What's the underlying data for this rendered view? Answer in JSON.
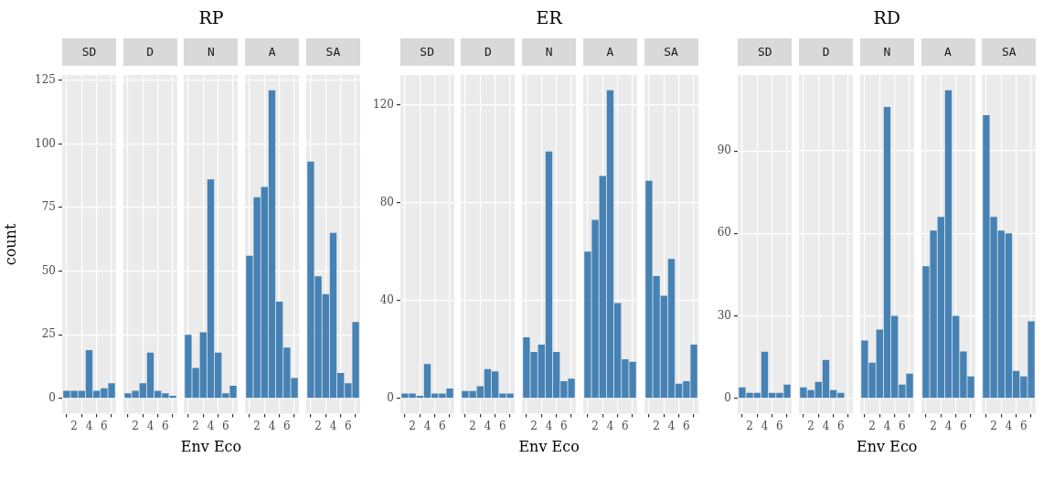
{
  "chart_data": [
    {
      "type": "bar",
      "subtitle": "SD",
      "ylabel": "count",
      "x": [
        1,
        2,
        3,
        4,
        5,
        6,
        7
      ],
      "values": [
        3,
        3,
        3,
        19,
        3,
        4,
        6
      ],
      "color": "#4682b4",
      "xlim": [
        0.4,
        7.6
      ],
      "xticks": [
        2,
        4,
        6
      ],
      "ylim": [
        -6,
        127
      ],
      "yticks": [
        0,
        25,
        50,
        75,
        100,
        125
      ],
      "grid": true
    },
    {
      "type": "bar",
      "subtitle": "D",
      "x": [
        1,
        2,
        3,
        4,
        5,
        6,
        7
      ],
      "values": [
        2,
        3,
        6,
        18,
        3,
        2,
        1
      ],
      "color": "#4682b4",
      "xlim": [
        0.4,
        7.6
      ],
      "xticks": [
        2,
        4,
        6
      ],
      "ylim": [
        -6,
        127
      ],
      "yticks": [
        0,
        25,
        50,
        75,
        100,
        125
      ],
      "grid": true,
      "tick_labels": "x"
    },
    {
      "type": "bar",
      "title": "RP",
      "subtitle": "N",
      "xlabel": "Env Eco",
      "x": [
        1,
        2,
        3,
        4,
        5,
        6,
        7
      ],
      "values": [
        25,
        12,
        26,
        86,
        18,
        2,
        5
      ],
      "color": "#4682b4",
      "xlim": [
        0.4,
        7.6
      ],
      "xticks": [
        2,
        4,
        6
      ],
      "ylim": [
        -6,
        127
      ],
      "yticks": [
        0,
        25,
        50,
        75,
        100,
        125
      ],
      "grid": true,
      "tick_labels": "x"
    },
    {
      "type": "bar",
      "subtitle": "A",
      "x": [
        1,
        2,
        3,
        4,
        5,
        6,
        7
      ],
      "values": [
        56,
        79,
        83,
        121,
        38,
        20,
        8
      ],
      "color": "#4682b4",
      "xlim": [
        0.4,
        7.6
      ],
      "xticks": [
        2,
        4,
        6
      ],
      "ylim": [
        -6,
        127
      ],
      "yticks": [
        0,
        25,
        50,
        75,
        100,
        125
      ],
      "grid": true,
      "tick_labels": "x"
    },
    {
      "type": "bar",
      "subtitle": "SA",
      "x": [
        1,
        2,
        3,
        4,
        5,
        6,
        7
      ],
      "values": [
        93,
        48,
        41,
        65,
        10,
        6,
        30
      ],
      "color": "#4682b4",
      "xlim": [
        0.4,
        7.6
      ],
      "xticks": [
        2,
        4,
        6
      ],
      "ylim": [
        -6,
        127
      ],
      "yticks": [
        0,
        25,
        50,
        75,
        100,
        125
      ],
      "grid": true,
      "tick_labels": "x"
    },
    {
      "type": "bar",
      "subtitle": "SD",
      "x": [
        1,
        2,
        3,
        4,
        5,
        6,
        7
      ],
      "values": [
        2,
        2,
        1,
        14,
        2,
        2,
        4
      ],
      "color": "#4682b4",
      "xlim": [
        0.4,
        7.6
      ],
      "xticks": [
        2,
        4,
        6
      ],
      "ylim": [
        -6.3,
        132.3
      ],
      "yticks": [
        0,
        40,
        80,
        120
      ],
      "grid": true
    },
    {
      "type": "bar",
      "subtitle": "D",
      "x": [
        1,
        2,
        3,
        4,
        5,
        6,
        7
      ],
      "values": [
        3,
        3,
        5,
        12,
        11,
        2,
        2
      ],
      "color": "#4682b4",
      "xlim": [
        0.4,
        7.6
      ],
      "xticks": [
        2,
        4,
        6
      ],
      "ylim": [
        -6.3,
        132.3
      ],
      "yticks": [
        0,
        40,
        80,
        120
      ],
      "grid": true,
      "tick_labels": "x"
    },
    {
      "type": "bar",
      "title": "ER",
      "subtitle": "N",
      "xlabel": "Env Eco",
      "x": [
        1,
        2,
        3,
        4,
        5,
        6,
        7
      ],
      "values": [
        25,
        19,
        22,
        101,
        19,
        7,
        8
      ],
      "color": "#4682b4",
      "xlim": [
        0.4,
        7.6
      ],
      "xticks": [
        2,
        4,
        6
      ],
      "ylim": [
        -6.3,
        132.3
      ],
      "yticks": [
        0,
        40,
        80,
        120
      ],
      "grid": true,
      "tick_labels": "x"
    },
    {
      "type": "bar",
      "subtitle": "A",
      "x": [
        1,
        2,
        3,
        4,
        5,
        6,
        7
      ],
      "values": [
        60,
        73,
        91,
        126,
        39,
        16,
        15
      ],
      "color": "#4682b4",
      "xlim": [
        0.4,
        7.6
      ],
      "xticks": [
        2,
        4,
        6
      ],
      "ylim": [
        -6.3,
        132.3
      ],
      "yticks": [
        0,
        40,
        80,
        120
      ],
      "grid": true,
      "tick_labels": "x"
    },
    {
      "type": "bar",
      "subtitle": "SA",
      "x": [
        1,
        2,
        3,
        4,
        5,
        6,
        7
      ],
      "values": [
        89,
        50,
        42,
        57,
        6,
        7,
        22
      ],
      "color": "#4682b4",
      "xlim": [
        0.4,
        7.6
      ],
      "xticks": [
        2,
        4,
        6
      ],
      "ylim": [
        -6.3,
        132.3
      ],
      "yticks": [
        0,
        40,
        80,
        120
      ],
      "grid": true,
      "tick_labels": "x"
    },
    {
      "type": "bar",
      "subtitle": "SD",
      "x": [
        1,
        2,
        3,
        4,
        5,
        6,
        7
      ],
      "values": [
        4,
        2,
        2,
        17,
        2,
        2,
        5
      ],
      "color": "#4682b4",
      "xlim": [
        0.4,
        7.6
      ],
      "xticks": [
        2,
        4,
        6
      ],
      "ylim": [
        -5.6,
        117.6
      ],
      "yticks": [
        0,
        30,
        60,
        90
      ],
      "grid": true
    },
    {
      "type": "bar",
      "subtitle": "D",
      "x": [
        1,
        2,
        3,
        4,
        5,
        6,
        7
      ],
      "values": [
        4,
        3,
        6,
        14,
        3,
        2,
        0
      ],
      "color": "#4682b4",
      "xlim": [
        0.4,
        7.6
      ],
      "xticks": [
        2,
        4,
        6
      ],
      "ylim": [
        -5.6,
        117.6
      ],
      "yticks": [
        0,
        30,
        60,
        90
      ],
      "grid": true,
      "tick_labels": "x"
    },
    {
      "type": "bar",
      "title": "RD",
      "subtitle": "N",
      "xlabel": "Env Eco",
      "x": [
        1,
        2,
        3,
        4,
        5,
        6,
        7
      ],
      "values": [
        21,
        13,
        25,
        106,
        30,
        5,
        9
      ],
      "color": "#4682b4",
      "xlim": [
        0.4,
        7.6
      ],
      "xticks": [
        2,
        4,
        6
      ],
      "ylim": [
        -5.6,
        117.6
      ],
      "yticks": [
        0,
        30,
        60,
        90
      ],
      "grid": true,
      "tick_labels": "x"
    },
    {
      "type": "bar",
      "subtitle": "A",
      "x": [
        1,
        2,
        3,
        4,
        5,
        6,
        7
      ],
      "values": [
        48,
        61,
        66,
        112,
        30,
        17,
        8
      ],
      "color": "#4682b4",
      "xlim": [
        0.4,
        7.6
      ],
      "xticks": [
        2,
        4,
        6
      ],
      "ylim": [
        -5.6,
        117.6
      ],
      "yticks": [
        0,
        30,
        60,
        90
      ],
      "grid": true,
      "tick_labels": "x"
    },
    {
      "type": "bar",
      "subtitle": "SA",
      "x": [
        1,
        2,
        3,
        4,
        5,
        6,
        7
      ],
      "values": [
        103,
        66,
        61,
        60,
        10,
        8,
        28
      ],
      "color": "#4682b4",
      "xlim": [
        0.4,
        7.6
      ],
      "xticks": [
        2,
        4,
        6
      ],
      "ylim": [
        -5.6,
        117.6
      ],
      "yticks": [
        0,
        30,
        60,
        90
      ],
      "grid": true,
      "tick_labels": "x"
    }
  ]
}
